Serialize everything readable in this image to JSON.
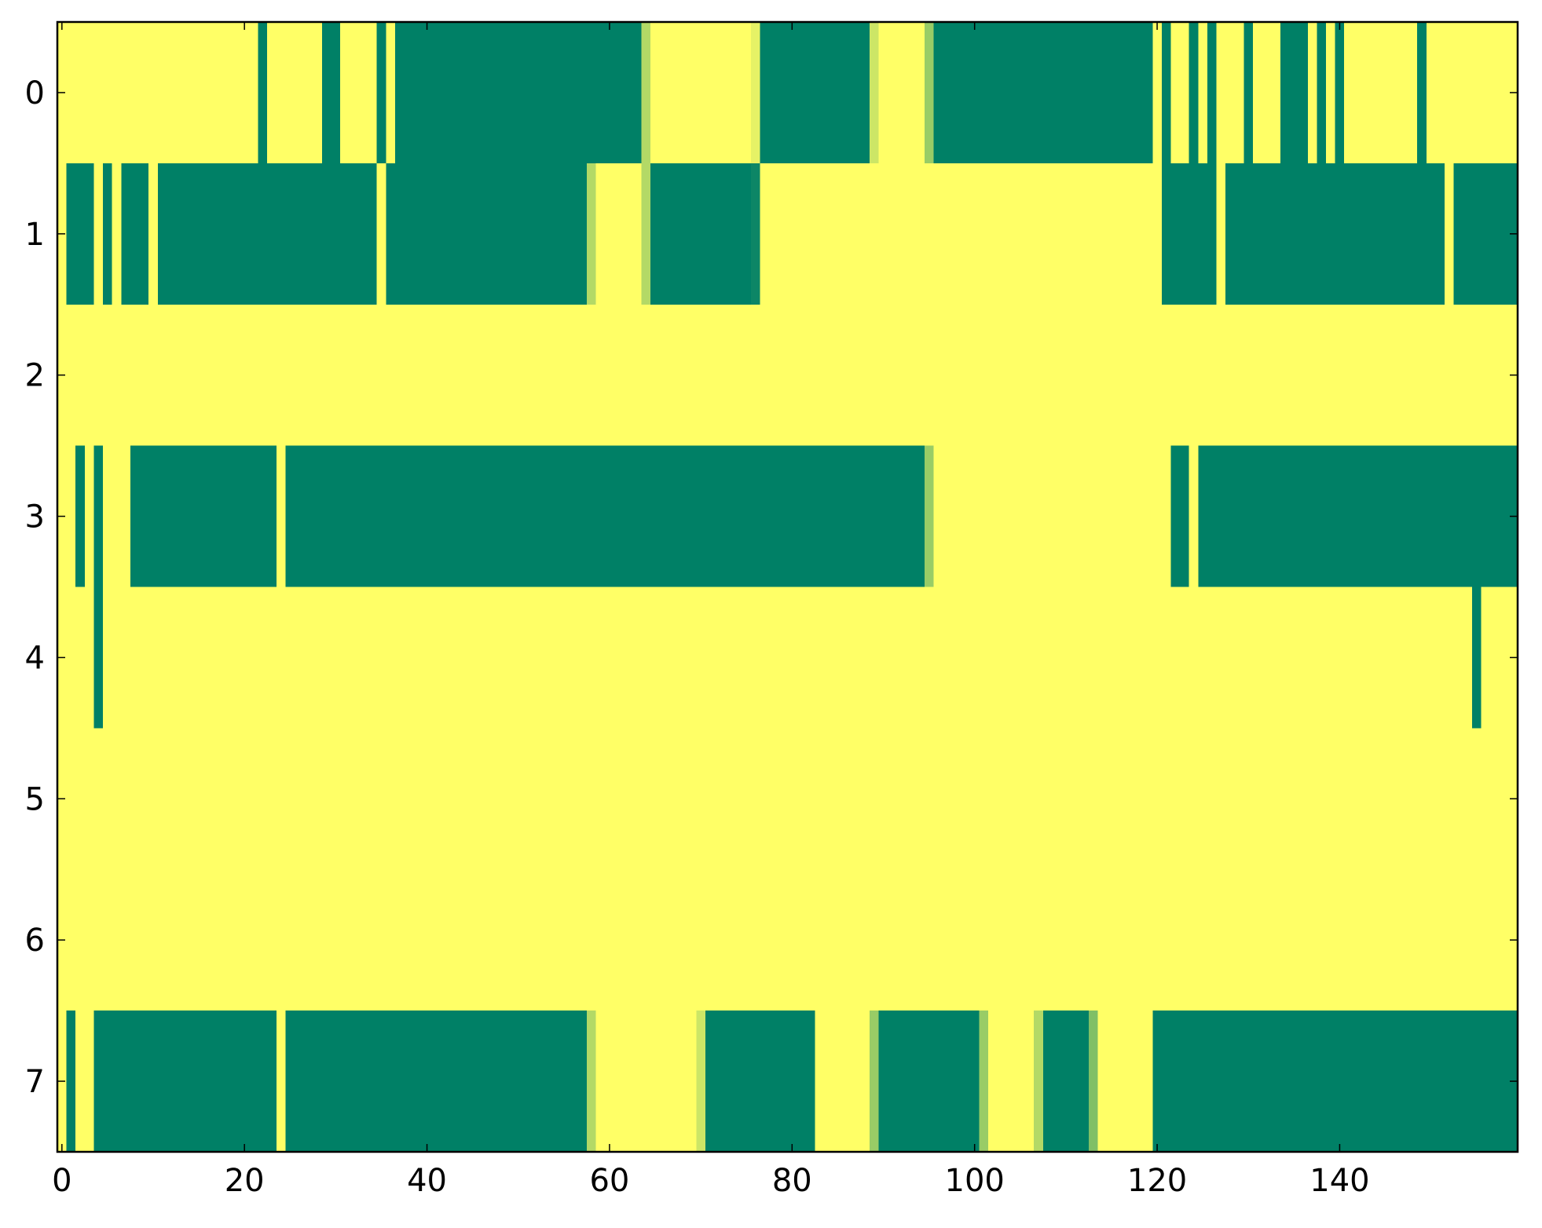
{
  "chart_data": {
    "type": "heatmap",
    "colormap": "summer",
    "clim": [
      0,
      1
    ],
    "xlim": [
      -0.5,
      159.5
    ],
    "ylim": [
      7.5,
      -0.5
    ],
    "xticks": [
      0,
      20,
      40,
      60,
      80,
      100,
      120,
      140
    ],
    "yticks": [
      0,
      1,
      2,
      3,
      4,
      5,
      6,
      7
    ],
    "z": [
      [
        1,
        1,
        1,
        1,
        1,
        1,
        1,
        1,
        1,
        1,
        1,
        1,
        1,
        1,
        1,
        1,
        1,
        1,
        1,
        1,
        1,
        1,
        0,
        1,
        1,
        1,
        1,
        1,
        1,
        0,
        0,
        1,
        1,
        1,
        1,
        0,
        1,
        0,
        0,
        0,
        0,
        0,
        0,
        0,
        0,
        0,
        0,
        0,
        0,
        0,
        0,
        0,
        0,
        0,
        0,
        0,
        0,
        0,
        0,
        0,
        0,
        0,
        0,
        0,
        0.7,
        1,
        1,
        1,
        1,
        1,
        1,
        1,
        1,
        1,
        1,
        1,
        0.9,
        0,
        0,
        0,
        0,
        0,
        0,
        0,
        0,
        0,
        0,
        0,
        0,
        0.8,
        1,
        1,
        1,
        1,
        1,
        0.6,
        0,
        0,
        0,
        0,
        0,
        0,
        0,
        0,
        0,
        0,
        0,
        0,
        0,
        0,
        0,
        0,
        0,
        0,
        0,
        0,
        0,
        0,
        0,
        0,
        1,
        0,
        1,
        1,
        0,
        1,
        0,
        1,
        1,
        1,
        0,
        1,
        1,
        1,
        0,
        0,
        0,
        1,
        0,
        1,
        0,
        1,
        1,
        1,
        1,
        1,
        1,
        1,
        1,
        0,
        1,
        1,
        1,
        1,
        1,
        1,
        1,
        1,
        1,
        1
      ],
      [
        1,
        0,
        0,
        0,
        1,
        0,
        1,
        0,
        0,
        0,
        1,
        0,
        0,
        0,
        0,
        0,
        0,
        0,
        0,
        0,
        0,
        0,
        0,
        0,
        0,
        0,
        0,
        0,
        0,
        0,
        0,
        0,
        0,
        0,
        0,
        1,
        0,
        0,
        0,
        0,
        0,
        0,
        0,
        0,
        0,
        0,
        0,
        0,
        0,
        0,
        0,
        0,
        0,
        0,
        0,
        0,
        0,
        0,
        0.7,
        1,
        1,
        1,
        1,
        1,
        0.7,
        0,
        0,
        0,
        0,
        0,
        0,
        0,
        0,
        0,
        0,
        0,
        0.05,
        1,
        1,
        1,
        1,
        1,
        1,
        1,
        1,
        1,
        1,
        1,
        1,
        1,
        1,
        1,
        1,
        1,
        1,
        1,
        1,
        1,
        1,
        1,
        1,
        1,
        1,
        1,
        1,
        1,
        1,
        1,
        1,
        1,
        1,
        1,
        1,
        1,
        1,
        1,
        1,
        1,
        1,
        1,
        1,
        0,
        0,
        0,
        0,
        0,
        0,
        1,
        0,
        0,
        0,
        0,
        0,
        0,
        0,
        0,
        0,
        0,
        0,
        0,
        0,
        0,
        0,
        0,
        0,
        0,
        0,
        0,
        0,
        0,
        0,
        0,
        1,
        0,
        0,
        0,
        0,
        0,
        0,
        0
      ],
      [
        1,
        1,
        1,
        1,
        1,
        1,
        1,
        1,
        1,
        1,
        1,
        1,
        1,
        1,
        1,
        1,
        1,
        1,
        1,
        1,
        1,
        1,
        1,
        1,
        1,
        1,
        1,
        1,
        1,
        1,
        1,
        1,
        1,
        1,
        1,
        1,
        1,
        1,
        1,
        1,
        1,
        1,
        1,
        1,
        1,
        1,
        1,
        1,
        1,
        1,
        1,
        1,
        1,
        1,
        1,
        1,
        1,
        1,
        1,
        1,
        1,
        1,
        1,
        1,
        1,
        1,
        1,
        1,
        1,
        1,
        1,
        1,
        1,
        1,
        1,
        1,
        1,
        1,
        1,
        1,
        1,
        1,
        1,
        1,
        1,
        1,
        1,
        1,
        1,
        1,
        1,
        1,
        1,
        1,
        1,
        1,
        1,
        1,
        1,
        1,
        1,
        1,
        1,
        1,
        1,
        1,
        1,
        1,
        1,
        1,
        1,
        1,
        1,
        1,
        1,
        1,
        1,
        1,
        1,
        1,
        1,
        1,
        1,
        1,
        1,
        1,
        1,
        1,
        1,
        1,
        1,
        1,
        1,
        1,
        1,
        1,
        1,
        1,
        1,
        1,
        1,
        1,
        1,
        1,
        1,
        1,
        1,
        1,
        1,
        1,
        1,
        1,
        1,
        1,
        1,
        1,
        1,
        1,
        1,
        1
      ],
      [
        1,
        1,
        0,
        1,
        0,
        1,
        1,
        1,
        0,
        0,
        0,
        0,
        0,
        0,
        0,
        0,
        0,
        0,
        0,
        0,
        0,
        0,
        0,
        0,
        1,
        0,
        0,
        0,
        0,
        0,
        0,
        0,
        0,
        0,
        0,
        0,
        0,
        0,
        0,
        0,
        0,
        0,
        0,
        0,
        0,
        0,
        0,
        0,
        0,
        0,
        0,
        0,
        0,
        0,
        0,
        0,
        0,
        0,
        0,
        0,
        0,
        0,
        0,
        0,
        0,
        0,
        0,
        0,
        0,
        0,
        0,
        0,
        0,
        0,
        0,
        0,
        0,
        0,
        0,
        0,
        0,
        0,
        0,
        0,
        0,
        0,
        0,
        0,
        0,
        0,
        0,
        0,
        0,
        0,
        0,
        0.6,
        1,
        1,
        1,
        1,
        1,
        1,
        1,
        1,
        1,
        1,
        1,
        1,
        1,
        1,
        1,
        1,
        1,
        1,
        1,
        1,
        1,
        1,
        1,
        1,
        1,
        1,
        0,
        0,
        1,
        0,
        0,
        0,
        0,
        0,
        0,
        0,
        0,
        0,
        0,
        0,
        0,
        0,
        0,
        0,
        0,
        0,
        0,
        0,
        0,
        0,
        0,
        0,
        0,
        0,
        0,
        0,
        0,
        0,
        0,
        0,
        0,
        0,
        0,
        0
      ],
      [
        1,
        1,
        1,
        1,
        0,
        1,
        1,
        1,
        1,
        1,
        1,
        1,
        1,
        1,
        1,
        1,
        1,
        1,
        1,
        1,
        1,
        1,
        1,
        1,
        1,
        1,
        1,
        1,
        1,
        1,
        1,
        1,
        1,
        1,
        1,
        1,
        1,
        1,
        1,
        1,
        1,
        1,
        1,
        1,
        1,
        1,
        1,
        1,
        1,
        1,
        1,
        1,
        1,
        1,
        1,
        1,
        1,
        1,
        1,
        1,
        1,
        1,
        1,
        1,
        1,
        1,
        1,
        1,
        1,
        1,
        1,
        1,
        1,
        1,
        1,
        1,
        1,
        1,
        1,
        1,
        1,
        1,
        1,
        1,
        1,
        1,
        1,
        1,
        1,
        1,
        1,
        1,
        1,
        1,
        1,
        1,
        1,
        1,
        1,
        1,
        1,
        1,
        1,
        1,
        1,
        1,
        1,
        1,
        1,
        1,
        1,
        1,
        1,
        1,
        1,
        1,
        1,
        1,
        1,
        1,
        1,
        1,
        1,
        1,
        1,
        1,
        1,
        1,
        1,
        1,
        1,
        1,
        1,
        1,
        1,
        1,
        1,
        1,
        1,
        1,
        1,
        1,
        1,
        1,
        1,
        1,
        1,
        1,
        1,
        1,
        1,
        1,
        1,
        1,
        1,
        0,
        1,
        1,
        1,
        1
      ],
      [
        1,
        1,
        1,
        1,
        1,
        1,
        1,
        1,
        1,
        1,
        1,
        1,
        1,
        1,
        1,
        1,
        1,
        1,
        1,
        1,
        1,
        1,
        1,
        1,
        1,
        1,
        1,
        1,
        1,
        1,
        1,
        1,
        1,
        1,
        1,
        1,
        1,
        1,
        1,
        1,
        1,
        1,
        1,
        1,
        1,
        1,
        1,
        1,
        1,
        1,
        1,
        1,
        1,
        1,
        1,
        1,
        1,
        1,
        1,
        1,
        1,
        1,
        1,
        1,
        1,
        1,
        1,
        1,
        1,
        1,
        1,
        1,
        1,
        1,
        1,
        1,
        1,
        1,
        1,
        1,
        1,
        1,
        1,
        1,
        1,
        1,
        1,
        1,
        1,
        1,
        1,
        1,
        1,
        1,
        1,
        1,
        1,
        1,
        1,
        1,
        1,
        1,
        1,
        1,
        1,
        1,
        1,
        1,
        1,
        1,
        1,
        1,
        1,
        1,
        1,
        1,
        1,
        1,
        1,
        1,
        1,
        1,
        1,
        1,
        1,
        1,
        1,
        1,
        1,
        1,
        1,
        1,
        1,
        1,
        1,
        1,
        1,
        1,
        1,
        1,
        1,
        1,
        1,
        1,
        1,
        1,
        1,
        1,
        1,
        1,
        1,
        1,
        1,
        1,
        1,
        1,
        1,
        1,
        1,
        1
      ],
      [
        1,
        1,
        1,
        1,
        1,
        1,
        1,
        1,
        1,
        1,
        1,
        1,
        1,
        1,
        1,
        1,
        1,
        1,
        1,
        1,
        1,
        1,
        1,
        1,
        1,
        1,
        1,
        1,
        1,
        1,
        1,
        1,
        1,
        1,
        1,
        1,
        1,
        1,
        1,
        1,
        1,
        1,
        1,
        1,
        1,
        1,
        1,
        1,
        1,
        1,
        1,
        1,
        1,
        1,
        1,
        1,
        1,
        1,
        1,
        1,
        1,
        1,
        1,
        1,
        1,
        1,
        1,
        1,
        1,
        1,
        1,
        1,
        1,
        1,
        1,
        1,
        1,
        1,
        1,
        1,
        1,
        1,
        1,
        1,
        1,
        1,
        1,
        1,
        1,
        1,
        1,
        1,
        1,
        1,
        1,
        1,
        1,
        1,
        1,
        1,
        1,
        1,
        1,
        1,
        1,
        1,
        1,
        1,
        1,
        1,
        1,
        1,
        1,
        1,
        1,
        1,
        1,
        1,
        1,
        1,
        1,
        1,
        1,
        1,
        1,
        1,
        1,
        1,
        1,
        1,
        1,
        1,
        1,
        1,
        1,
        1,
        1,
        1,
        1,
        1,
        1,
        1,
        1,
        1,
        1,
        1,
        1,
        1,
        1,
        1,
        1,
        1,
        1,
        1,
        1,
        1,
        1,
        1,
        1,
        1
      ],
      [
        1,
        0,
        1,
        1,
        0,
        0,
        0,
        0,
        0,
        0,
        0,
        0,
        0,
        0,
        0,
        0,
        0,
        0,
        0,
        0,
        0,
        0,
        0,
        0,
        1,
        0,
        0,
        0,
        0,
        0,
        0,
        0,
        0,
        0,
        0,
        0,
        0,
        0,
        0,
        0,
        0,
        0,
        0,
        0,
        0,
        0,
        0,
        0,
        0,
        0,
        0,
        0,
        0,
        0,
        0,
        0,
        0,
        0,
        0.7,
        1,
        1,
        1,
        1,
        1,
        1,
        1,
        1,
        1,
        1,
        1,
        0.8,
        0,
        0,
        0,
        0,
        0,
        0,
        0,
        0,
        0,
        0,
        0,
        0,
        1,
        1,
        1,
        1,
        1,
        1,
        0.6,
        0,
        0,
        0,
        0,
        0,
        0,
        0,
        0,
        0,
        0,
        0,
        0.6,
        1,
        1,
        1,
        1,
        1,
        0.7,
        0,
        0,
        0,
        0,
        0,
        0.5,
        1,
        1,
        1,
        1,
        1,
        1,
        0,
        0,
        0,
        0,
        0,
        0,
        0,
        0,
        0,
        0,
        0,
        0,
        0,
        0,
        0,
        0,
        0,
        0,
        0,
        0,
        0,
        0,
        0,
        0,
        0,
        0,
        0,
        0,
        0,
        0,
        0,
        0,
        0,
        0,
        0,
        0,
        0,
        0,
        0,
        0
      ]
    ]
  }
}
